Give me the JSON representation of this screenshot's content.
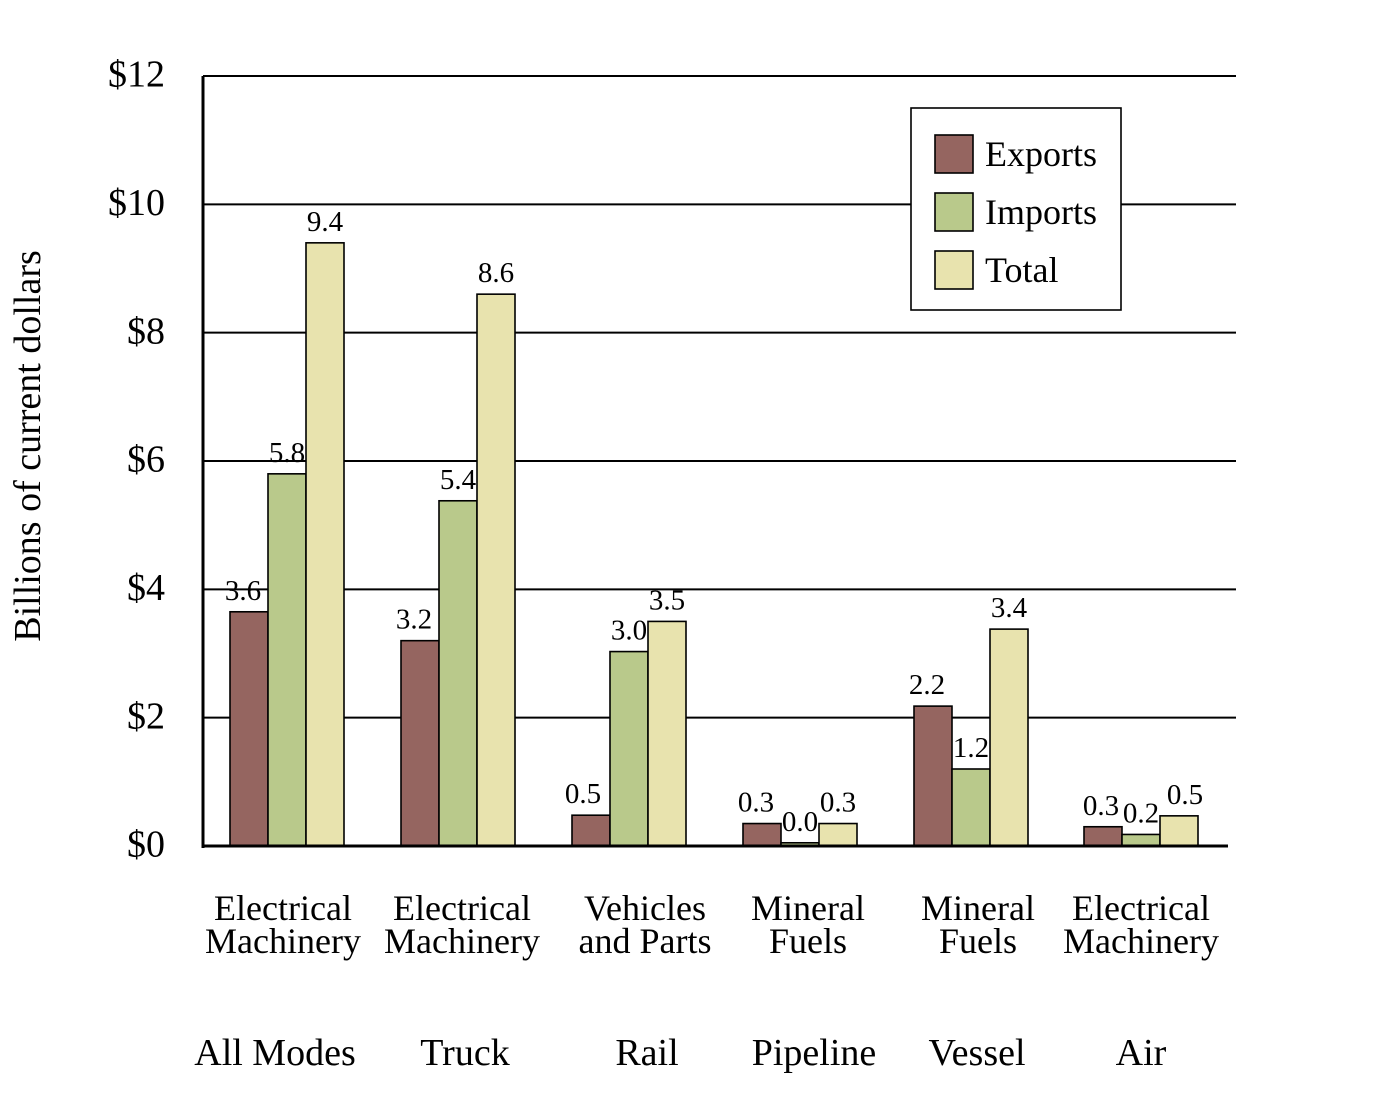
{
  "chart_data": {
    "type": "bar",
    "title": "",
    "xlabel": "",
    "ylabel": "Billions of current dollars",
    "ylim": [
      0,
      12
    ],
    "y_ticks": [
      0,
      2,
      4,
      6,
      8,
      10,
      12
    ],
    "y_tick_labels": [
      "$0",
      "$2",
      "$4",
      "$6",
      "$8",
      "$10",
      "$12"
    ],
    "grid": "horizontal",
    "legend_position": "top-right",
    "categories": [
      {
        "commodity": [
          "Electrical",
          "Machinery"
        ],
        "mode": "All Modes"
      },
      {
        "commodity": [
          "Electrical",
          "Machinery"
        ],
        "mode": "Truck"
      },
      {
        "commodity": [
          "Vehicles",
          "and Parts"
        ],
        "mode": "Rail"
      },
      {
        "commodity": [
          "Mineral",
          "Fuels"
        ],
        "mode": "Pipeline"
      },
      {
        "commodity": [
          "Mineral",
          "Fuels"
        ],
        "mode": "Vessel"
      },
      {
        "commodity": [
          "Electrical",
          "Machinery"
        ],
        "mode": "Air"
      }
    ],
    "series": [
      {
        "name": "Exports",
        "color": "#956560",
        "values": [
          3.65,
          3.2,
          0.48,
          0.35,
          2.18,
          0.3
        ],
        "labels": [
          "3.6",
          "3.2",
          "0.5",
          "0.3",
          "2.2",
          "0.3"
        ]
      },
      {
        "name": "Imports",
        "color": "#b9c98b",
        "values": [
          5.8,
          5.38,
          3.03,
          0.05,
          1.2,
          0.18
        ],
        "labels": [
          "5.8",
          "5.4",
          "3.0",
          "0.0",
          "1.2",
          "0.2"
        ]
      },
      {
        "name": "Total",
        "color": "#e8e3ae",
        "values": [
          9.4,
          8.6,
          3.5,
          0.35,
          3.38,
          0.47
        ],
        "labels": [
          "9.4",
          "8.6",
          "3.5",
          "0.3",
          "3.4",
          "0.5"
        ]
      }
    ]
  }
}
